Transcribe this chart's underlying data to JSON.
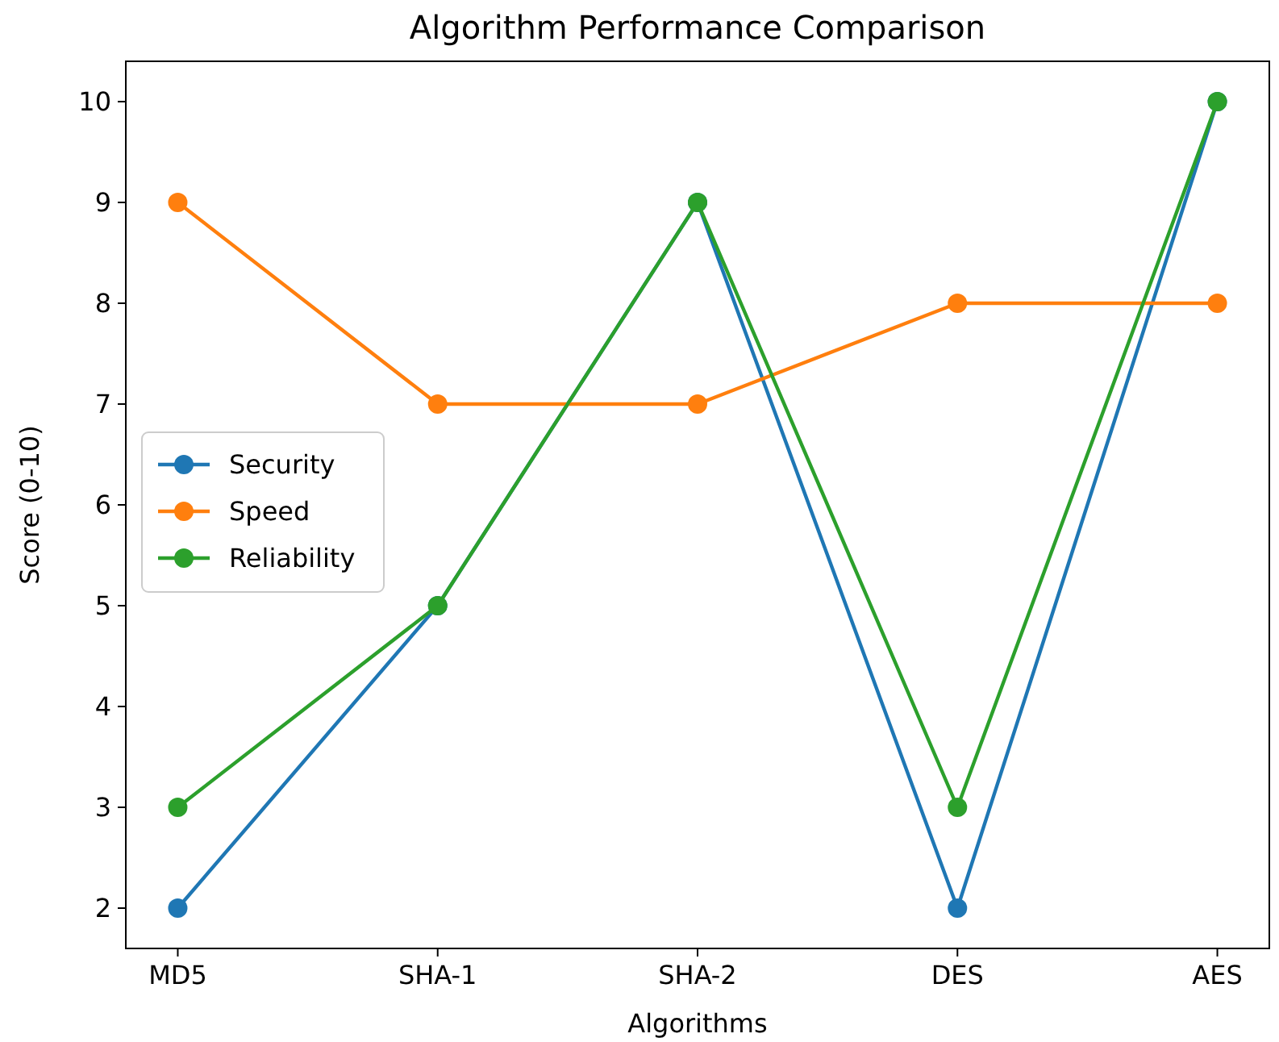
{
  "chart_data": {
    "type": "line",
    "title": "Algorithm Performance Comparison",
    "xlabel": "Algorithms",
    "ylabel": "Score (0-10)",
    "categories": [
      "MD5",
      "SHA-1",
      "SHA-2",
      "DES",
      "AES"
    ],
    "series": [
      {
        "name": "Security",
        "color": "#1f77b4",
        "values": [
          2,
          5,
          9,
          2,
          10
        ]
      },
      {
        "name": "Speed",
        "color": "#ff7f0e",
        "values": [
          9,
          7,
          7,
          8,
          8
        ]
      },
      {
        "name": "Reliability",
        "color": "#2ca02c",
        "values": [
          3,
          5,
          9,
          3,
          10
        ]
      }
    ],
    "ylim": [
      1.6,
      10.4
    ],
    "yticks": [
      2,
      3,
      4,
      5,
      6,
      7,
      8,
      9,
      10
    ],
    "marker": "circle",
    "legend": "left",
    "grid": false
  }
}
